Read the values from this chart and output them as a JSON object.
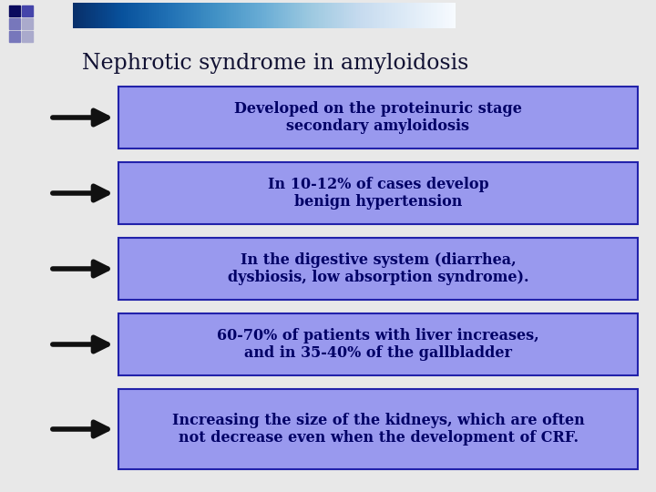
{
  "title": "Nephrotic syndrome in amyloidosis",
  "title_fontsize": 17,
  "title_color": "#111133",
  "background_color": "#e8e8e8",
  "box_color": "#9999ee",
  "box_edge_color": "#2222aa",
  "text_color": "#000066",
  "arrow_color": "#111111",
  "boxes": [
    "Developed on the proteinuric stage\nsecondary amyloidosis",
    "In 10-12% of cases develop\nbenign hypertension",
    "In the digestive system (diarrhea,\ndysbiosis, low absorption syndrome).",
    "60-70% of patients with liver increases,\nand in 35-40% of the gallbladder",
    "Increasing the size of the kidneys, which are often\nnot decrease even when the development of CRF."
  ],
  "fontsize": 11.5,
  "header_grad_colors": [
    "#1a1a6e",
    "#9999cc",
    "#ccccdd",
    "#e8e8e8"
  ],
  "sq1_color": "#0a0a5e",
  "sq2_color": "#4444aa",
  "sq3_color": "#7777bb"
}
